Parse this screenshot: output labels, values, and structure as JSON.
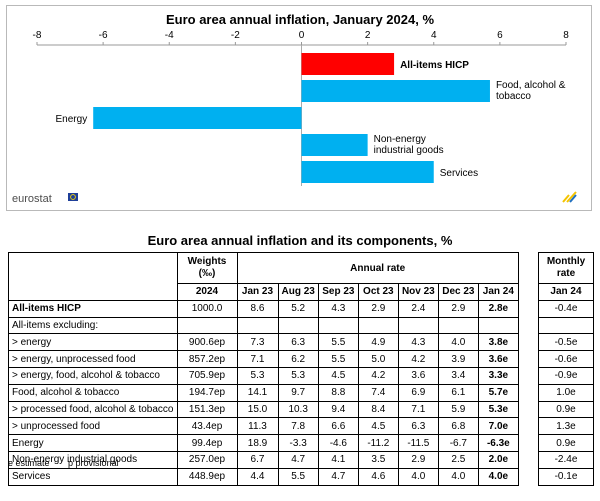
{
  "chart_data": {
    "type": "bar",
    "orientation": "horizontal",
    "title": "Euro area annual inflation, January 2024, %",
    "categories": [
      "All-items HICP",
      "Food, alcohol & tobacco",
      "Energy",
      "Non-energy industrial goods",
      "Services"
    ],
    "values": [
      2.8,
      5.7,
      -6.3,
      2.0,
      4.0
    ],
    "colors": [
      "#ff0000",
      "#00b0f0",
      "#00b0f0",
      "#00b0f0",
      "#00b0f0"
    ],
    "xlim": [
      -8,
      8
    ],
    "xticks": [
      "-8",
      "-6",
      "-4",
      "-2",
      "0",
      "2",
      "4",
      "6",
      "8"
    ],
    "axis_position": "top",
    "grid": false,
    "logo_text": "eurostat"
  },
  "table": {
    "title": "Euro area annual inflation and its components, %",
    "header": {
      "weights_label": "Weights (‰)",
      "annual_label": "Annual rate",
      "monthly_label": "Monthly rate",
      "weights_year": "2024",
      "months": [
        "Jan 23",
        "Aug 23",
        "Sep 23",
        "Oct 23",
        "Nov 23",
        "Dec 23",
        "Jan 24"
      ],
      "monthly_month": "Jan 24"
    },
    "rows": [
      {
        "label": "All-items HICP",
        "weight": "1000.0",
        "vals": [
          "8.6",
          "5.2",
          "4.3",
          "2.9",
          "2.4",
          "2.9",
          "2.8e"
        ],
        "monthly": "-0.4e",
        "bold_label": true
      },
      {
        "label": "All-items excluding:",
        "weight": "",
        "vals": [
          "",
          "",
          "",
          "",
          "",
          "",
          ""
        ],
        "monthly": "",
        "bold_label": false
      },
      {
        "label": "> energy",
        "weight": "900.6ep",
        "vals": [
          "7.3",
          "6.3",
          "5.5",
          "4.9",
          "4.3",
          "4.0",
          "3.8e"
        ],
        "monthly": "-0.5e",
        "bold_label": false
      },
      {
        "label": "> energy, unprocessed food",
        "weight": "857.2ep",
        "vals": [
          "7.1",
          "6.2",
          "5.5",
          "5.0",
          "4.2",
          "3.9",
          "3.6e"
        ],
        "monthly": "-0.6e",
        "bold_label": false
      },
      {
        "label": "> energy, food, alcohol & tobacco",
        "weight": "705.9ep",
        "vals": [
          "5.3",
          "5.3",
          "4.5",
          "4.2",
          "3.6",
          "3.4",
          "3.3e"
        ],
        "monthly": "-0.9e",
        "bold_label": false
      },
      {
        "label": "Food, alcohol & tobacco",
        "weight": "194.7ep",
        "vals": [
          "14.1",
          "9.7",
          "8.8",
          "7.4",
          "6.9",
          "6.1",
          "5.7e"
        ],
        "monthly": "1.0e",
        "bold_label": false
      },
      {
        "label": "> processed food, alcohol & tobacco",
        "weight": "151.3ep",
        "vals": [
          "15.0",
          "10.3",
          "9.4",
          "8.4",
          "7.1",
          "5.9",
          "5.3e"
        ],
        "monthly": "0.9e",
        "bold_label": false
      },
      {
        "label": "> unprocessed food",
        "weight": "43.4ep",
        "vals": [
          "11.3",
          "7.8",
          "6.6",
          "4.5",
          "6.3",
          "6.8",
          "7.0e"
        ],
        "monthly": "1.3e",
        "bold_label": false
      },
      {
        "label": "Energy",
        "weight": "99.4ep",
        "vals": [
          "18.9",
          "-3.3",
          "-4.6",
          "-11.2",
          "-11.5",
          "-6.7",
          "-6.3e"
        ],
        "monthly": "0.9e",
        "bold_label": false
      },
      {
        "label": "Non-energy industrial goods",
        "weight": "257.0ep",
        "vals": [
          "6.7",
          "4.7",
          "4.1",
          "3.5",
          "2.9",
          "2.5",
          "2.0e"
        ],
        "monthly": "-2.4e",
        "bold_label": false
      },
      {
        "label": "Services",
        "weight": "448.9ep",
        "vals": [
          "4.4",
          "5.5",
          "4.7",
          "4.6",
          "4.0",
          "4.0",
          "4.0e"
        ],
        "monthly": "-0.1e",
        "bold_label": false
      }
    ]
  },
  "notes": [
    "e estimate",
    "p provisional"
  ]
}
